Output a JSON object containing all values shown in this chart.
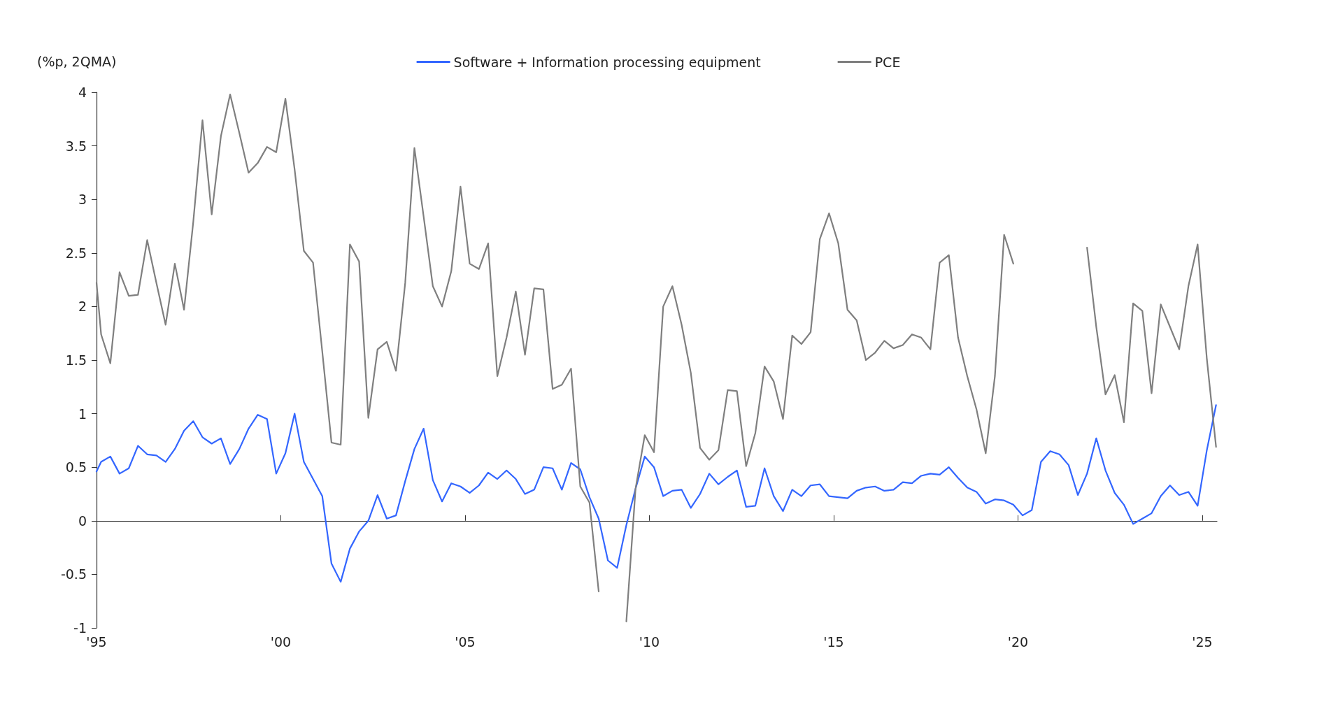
{
  "chart_data": {
    "type": "line",
    "ylabel": "(%p, 2QMA)",
    "legend": "top",
    "marker": "none",
    "x": [
      1995,
      1995.125,
      1995.375,
      1995.625,
      1995.875,
      1996.125,
      1996.375,
      1996.625,
      1996.875,
      1997.125,
      1997.375,
      1997.625,
      1997.875,
      1998.125,
      1998.375,
      1998.625,
      1998.875,
      1999.125,
      1999.375,
      1999.625,
      1999.875,
      2000.125,
      2000.375,
      2000.625,
      2000.875,
      2001.125,
      2001.375,
      2001.625,
      2001.875,
      2002.125,
      2002.375,
      2002.625,
      2002.875,
      2003.125,
      2003.375,
      2003.625,
      2003.875,
      2004.125,
      2004.375,
      2004.625,
      2004.875,
      2005.125,
      2005.375,
      2005.625,
      2005.875,
      2006.125,
      2006.375,
      2006.625,
      2006.875,
      2007.125,
      2007.375,
      2007.625,
      2007.875,
      2008.125,
      2008.375,
      2008.625,
      2008.875,
      2009.125,
      2009.375,
      2009.625,
      2009.875,
      2010.125,
      2010.375,
      2010.625,
      2010.875,
      2011.125,
      2011.375,
      2011.625,
      2011.875,
      2012.125,
      2012.375,
      2012.625,
      2012.875,
      2013.125,
      2013.375,
      2013.625,
      2013.875,
      2014.125,
      2014.375,
      2014.625,
      2014.875,
      2015.125,
      2015.375,
      2015.625,
      2015.875,
      2016.125,
      2016.375,
      2016.625,
      2016.875,
      2017.125,
      2017.375,
      2017.625,
      2017.875,
      2018.125,
      2018.375,
      2018.625,
      2018.875,
      2019.125,
      2019.375,
      2019.625,
      2019.875,
      2020.125,
      2020.375,
      2020.625,
      2020.875,
      2021.125,
      2021.375,
      2021.625,
      2021.875,
      2022.125,
      2022.375,
      2022.625,
      2022.875,
      2023.125,
      2023.375,
      2023.625,
      2023.875,
      2024.125,
      2024.375,
      2024.625,
      2024.875,
      2025.125,
      2025.375
    ],
    "series": [
      {
        "name": "Software + Information processing equipment",
        "color": "#3366ff",
        "values": [
          0.46,
          0.55,
          0.6,
          0.44,
          0.49,
          0.7,
          0.62,
          0.61,
          0.55,
          0.67,
          0.84,
          0.93,
          0.78,
          0.72,
          0.77,
          0.53,
          0.67,
          0.86,
          0.99,
          0.95,
          0.44,
          0.63,
          1.0,
          0.55,
          0.39,
          0.23,
          -0.4,
          -0.57,
          -0.26,
          -0.1,
          0.0,
          0.24,
          0.02,
          0.05,
          0.37,
          0.67,
          0.86,
          0.38,
          0.18,
          0.35,
          0.32,
          0.26,
          0.33,
          0.45,
          0.39,
          0.47,
          0.39,
          0.25,
          0.29,
          0.5,
          0.49,
          0.29,
          0.54,
          0.48,
          0.22,
          0.02,
          -0.37,
          -0.44,
          -0.04,
          0.3,
          0.6,
          0.5,
          0.23,
          0.28,
          0.29,
          0.12,
          0.25,
          0.44,
          0.34,
          0.41,
          0.47,
          0.13,
          0.14,
          0.49,
          0.23,
          0.09,
          0.29,
          0.23,
          0.33,
          0.34,
          0.23,
          0.22,
          0.21,
          0.28,
          0.31,
          0.32,
          0.28,
          0.29,
          0.36,
          0.35,
          0.42,
          0.44,
          0.43,
          0.5,
          0.4,
          0.31,
          0.27,
          0.16,
          0.2,
          0.19,
          0.15,
          0.05,
          0.1,
          0.55,
          0.65,
          0.62,
          0.52,
          0.24,
          0.44,
          0.77,
          0.47,
          0.26,
          0.15,
          -0.03,
          0.02,
          0.07,
          0.23,
          0.33,
          0.24,
          0.27,
          0.14,
          0.66,
          1.08
        ]
      },
      {
        "name": "PCE",
        "color": "#7f7f7f",
        "values": [
          2.22,
          1.74,
          1.47,
          2.32,
          2.1,
          2.11,
          2.62,
          2.22,
          1.83,
          2.4,
          1.97,
          2.79,
          3.74,
          2.86,
          3.59,
          3.98,
          3.62,
          3.25,
          3.34,
          3.49,
          3.44,
          3.94,
          3.28,
          2.52,
          2.41,
          1.58,
          0.73,
          0.71,
          2.58,
          2.42,
          0.96,
          1.6,
          1.67,
          1.4,
          2.22,
          3.48,
          2.84,
          2.19,
          2.0,
          2.33,
          3.12,
          2.4,
          2.35,
          2.59,
          1.35,
          1.71,
          2.14,
          1.55,
          2.17,
          2.16,
          1.23,
          1.27,
          1.42,
          0.32,
          0.17,
          -0.66,
          null,
          null,
          -0.94,
          0.3,
          0.8,
          0.64,
          2.0,
          2.19,
          1.83,
          1.38,
          0.68,
          0.57,
          0.66,
          1.22,
          1.21,
          0.51,
          0.82,
          1.44,
          1.3,
          0.95,
          1.73,
          1.65,
          1.76,
          2.63,
          2.87,
          2.59,
          1.97,
          1.87,
          1.5,
          1.57,
          1.68,
          1.61,
          1.64,
          1.74,
          1.71,
          1.6,
          2.41,
          2.48,
          1.71,
          1.35,
          1.04,
          0.63,
          1.35,
          2.67,
          2.4,
          null,
          null,
          null,
          null,
          null,
          null,
          null,
          2.55,
          1.81,
          1.18,
          1.36,
          0.92,
          2.03,
          1.96,
          1.19,
          2.02,
          1.81,
          1.6,
          2.19,
          2.58,
          1.51,
          0.69
        ]
      }
    ],
    "xlim": [
      1995,
      2025.4
    ],
    "xticks": [
      {
        "value": 1995,
        "label": "'95"
      },
      {
        "value": 2000,
        "label": "'00"
      },
      {
        "value": 2005,
        "label": "'05"
      },
      {
        "value": 2010,
        "label": "'10"
      },
      {
        "value": 2015,
        "label": "'15"
      },
      {
        "value": 2020,
        "label": "'20"
      },
      {
        "value": 2025,
        "label": "'25"
      }
    ],
    "ylim": [
      -1,
      4
    ],
    "yticks": [
      -1,
      -0.5,
      0,
      0.5,
      1,
      1.5,
      2,
      2.5,
      3,
      3.5,
      4
    ]
  }
}
